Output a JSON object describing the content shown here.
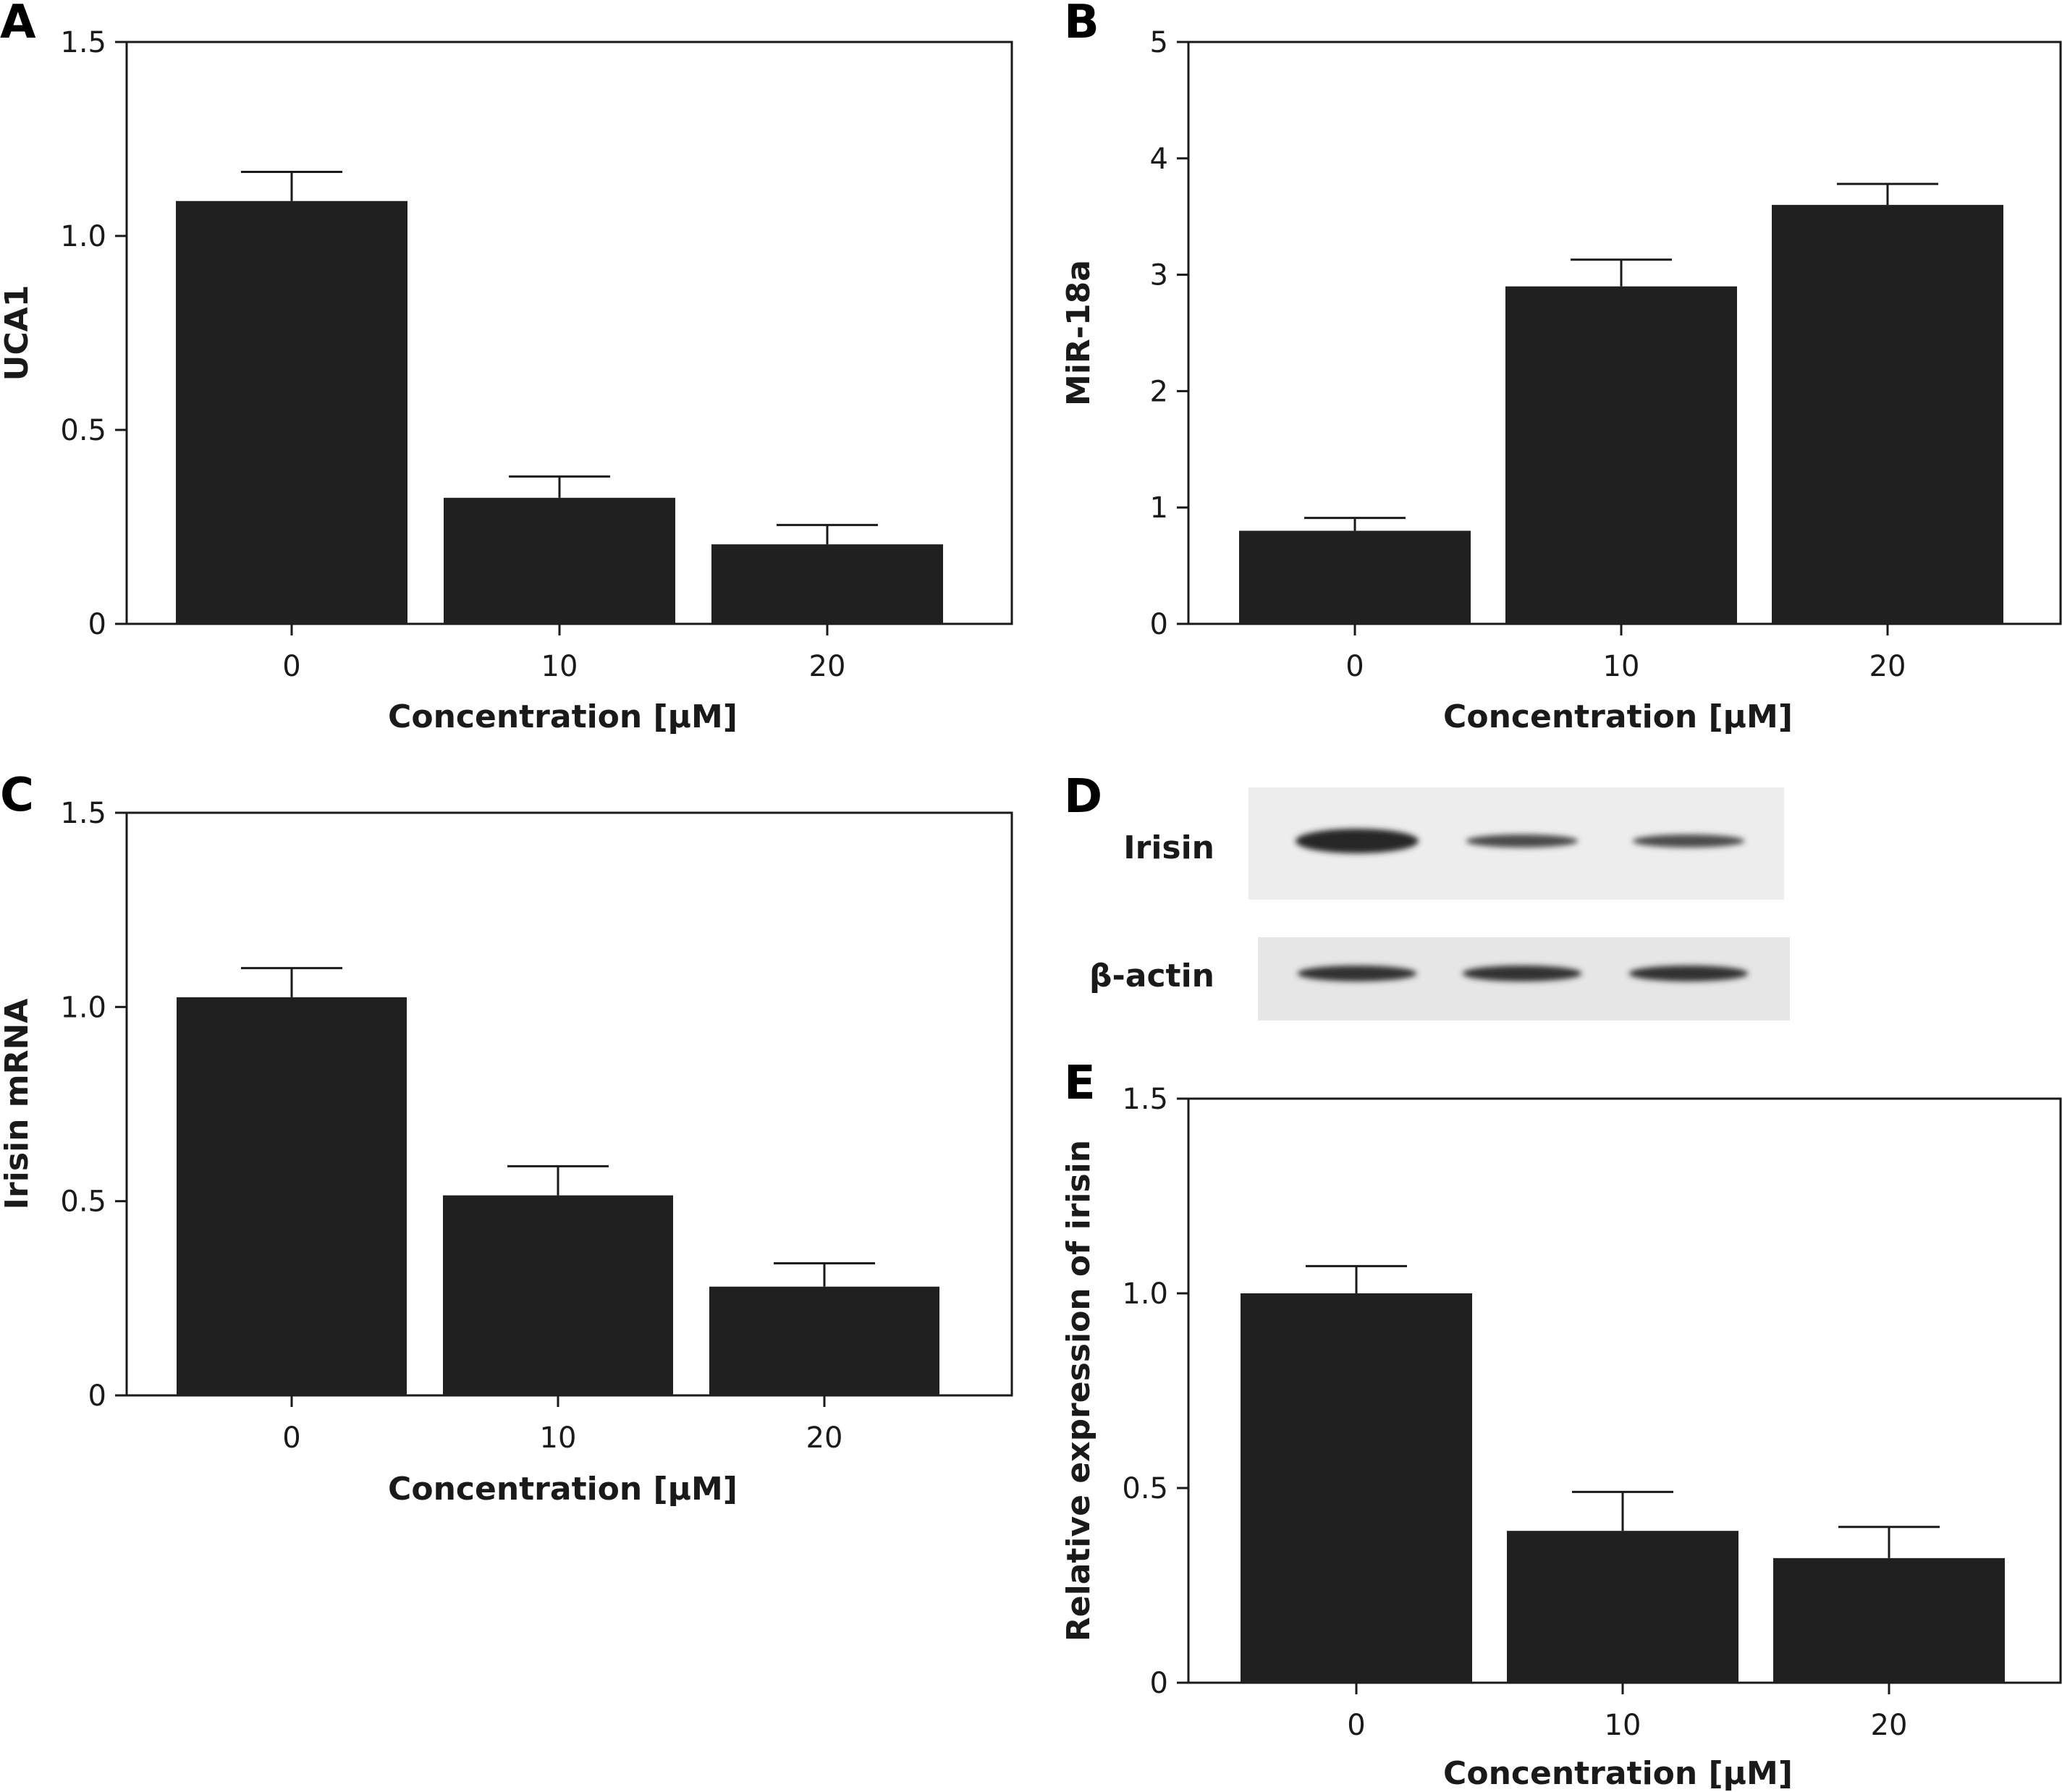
{
  "panels": {
    "A": "A",
    "B": "B",
    "C": "C",
    "D": "D",
    "E": "E"
  },
  "blot": {
    "rows": [
      {
        "label": "Irisin",
        "band_intensity": [
          1.0,
          0.55,
          0.5
        ]
      },
      {
        "label": "β-actin",
        "band_intensity": [
          0.85,
          0.85,
          0.85
        ]
      }
    ]
  },
  "colors": {
    "bar": "#202020",
    "axis": "#1a1a1a"
  },
  "chart_data": [
    {
      "panel": "A",
      "type": "bar",
      "categories": [
        "0",
        "10",
        "20"
      ],
      "values": [
        1.09,
        0.325,
        0.205
      ],
      "errors": [
        0.075,
        0.055,
        0.05
      ],
      "xlabel": "Concentration [μM]",
      "ylabel": "UCA1",
      "ylim": [
        0,
        1.5
      ],
      "yticks": [
        0,
        0.5,
        1.0,
        1.5
      ],
      "ytick_labels": [
        "0",
        "0.5",
        "1.0",
        "1.5"
      ],
      "grid": false
    },
    {
      "panel": "B",
      "type": "bar",
      "categories": [
        "0",
        "10",
        "20"
      ],
      "values": [
        0.8,
        2.9,
        3.6
      ],
      "errors": [
        0.11,
        0.23,
        0.18
      ],
      "xlabel": "Concentration [μM]",
      "ylabel": "MiR-18a",
      "ylim": [
        0,
        5
      ],
      "yticks": [
        0,
        1,
        2,
        3,
        4,
        5
      ],
      "ytick_labels": [
        "0",
        "1",
        "2",
        "3",
        "4",
        "5"
      ],
      "grid": false
    },
    {
      "panel": "C",
      "type": "bar",
      "categories": [
        "0",
        "10",
        "20"
      ],
      "values": [
        1.025,
        0.515,
        0.28
      ],
      "errors": [
        0.075,
        0.075,
        0.06
      ],
      "xlabel": "Concentration [μM]",
      "ylabel": "Irisin mRNA",
      "ylim": [
        0,
        1.5
      ],
      "yticks": [
        0,
        0.5,
        1.0,
        1.5
      ],
      "ytick_labels": [
        "0",
        "0.5",
        "1.0",
        "1.5"
      ],
      "grid": false
    },
    {
      "panel": "E",
      "type": "bar",
      "categories": [
        "0",
        "10",
        "20"
      ],
      "values": [
        1.0,
        0.39,
        0.32
      ],
      "errors": [
        0.07,
        0.1,
        0.08
      ],
      "xlabel": "Concentration [μM]",
      "ylabel": "Relative expression of irisin",
      "ylim": [
        0,
        1.5
      ],
      "yticks": [
        0,
        0.5,
        1.0,
        1.5
      ],
      "ytick_labels": [
        "0",
        "0.5",
        "1.0",
        "1.5"
      ],
      "grid": false
    }
  ]
}
